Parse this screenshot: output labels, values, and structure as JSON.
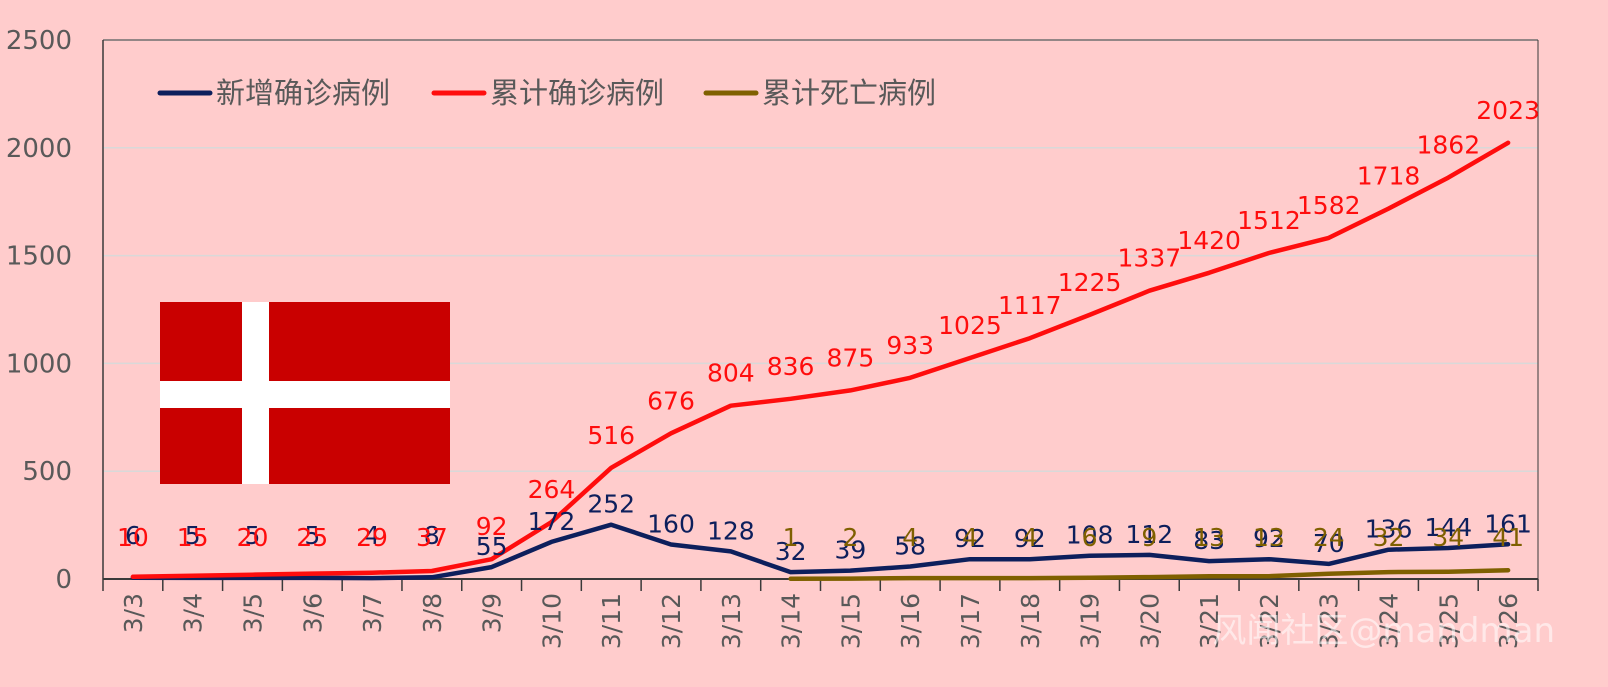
{
  "chart_data": {
    "type": "line",
    "categories": [
      "3/3",
      "3/4",
      "3/5",
      "3/6",
      "3/7",
      "3/8",
      "3/9",
      "3/10",
      "3/11",
      "3/12",
      "3/13",
      "3/14",
      "3/15",
      "3/16",
      "3/17",
      "3/18",
      "3/19",
      "3/20",
      "3/21",
      "3/22",
      "3/23",
      "3/24",
      "3/25",
      "3/26"
    ],
    "ylim": [
      0,
      2500
    ],
    "yticks": [
      0,
      500,
      1000,
      1500,
      2000,
      2500
    ],
    "grid": true,
    "legend_position": "top-left",
    "series": [
      {
        "name": "新增确诊病例",
        "color": "#0d1f5c",
        "values": [
          6,
          5,
          5,
          5,
          4,
          8,
          55,
          172,
          252,
          160,
          128,
          32,
          39,
          58,
          92,
          92,
          108,
          112,
          83,
          92,
          70,
          136,
          144,
          161
        ]
      },
      {
        "name": "累计确诊病例",
        "color": "#ff0d0d",
        "values": [
          10,
          15,
          20,
          25,
          29,
          37,
          92,
          264,
          516,
          676,
          804,
          836,
          875,
          933,
          1025,
          1117,
          1225,
          1337,
          1420,
          1512,
          1582,
          1718,
          1862,
          2023
        ]
      },
      {
        "name": "累计死亡病例",
        "color": "#7f6000",
        "values": [
          null,
          null,
          null,
          null,
          null,
          null,
          null,
          null,
          null,
          null,
          null,
          1,
          2,
          4,
          4,
          4,
          6,
          9,
          13,
          13,
          24,
          32,
          34,
          41
        ]
      }
    ]
  },
  "colors": {
    "background": "#ffcccc",
    "gridline": "#d9d9d9",
    "axis": "#3a3a3a",
    "flag_red": "#c90000",
    "flag_white": "#ffffff"
  },
  "flag": {
    "icon": "denmark-flag-icon"
  },
  "watermark": "风闻社区@mandman"
}
